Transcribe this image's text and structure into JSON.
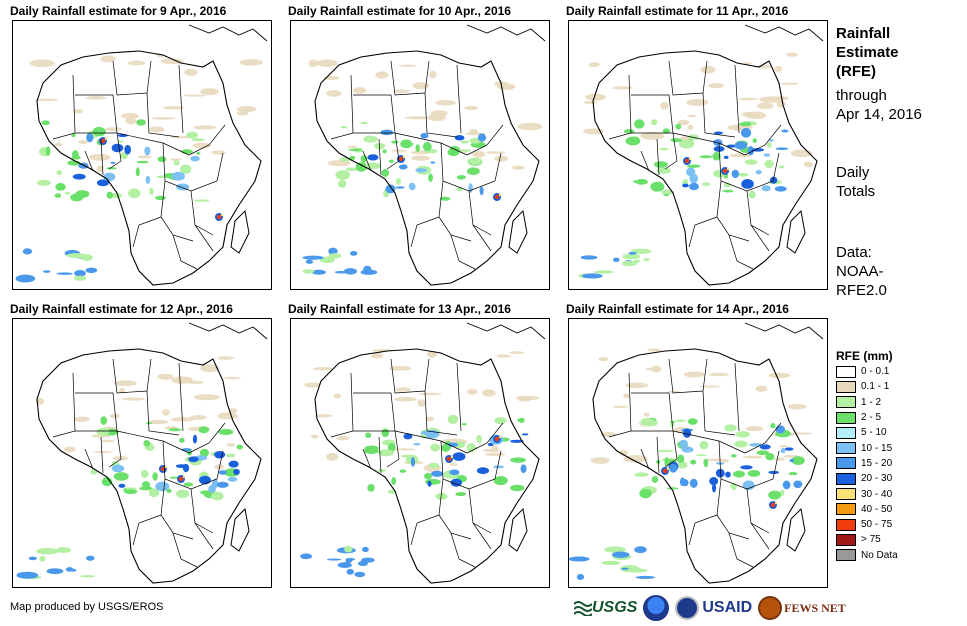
{
  "panels": [
    {
      "title": "Daily Rainfall estimate for 9 Apr., 2016",
      "day": "9 Apr., 2016"
    },
    {
      "title": "Daily Rainfall estimate for 10 Apr., 2016",
      "day": "10 Apr., 2016"
    },
    {
      "title": "Daily Rainfall estimate for 11 Apr., 2016",
      "day": "11 Apr., 2016"
    },
    {
      "title": "Daily Rainfall estimate for 12 Apr., 2016",
      "day": "12 Apr., 2016"
    },
    {
      "title": "Daily Rainfall estimate for 13 Apr., 2016",
      "day": "13 Apr., 2016"
    },
    {
      "title": "Daily Rainfall estimate for 14 Apr., 2016",
      "day": "14 Apr., 2016"
    }
  ],
  "side": {
    "title_line1": "Rainfall",
    "title_line2": "Estimate",
    "title_line3": "(RFE)",
    "through_line1": "through",
    "through_line2": "Apr 14, 2016",
    "daily_line1": "Daily",
    "daily_line2": "Totals",
    "data_line1": "Data:",
    "data_line2": "NOAA-",
    "data_line3": "RFE2.0"
  },
  "legend": {
    "title": "RFE (mm)",
    "items": [
      {
        "label": "0 - 0.1",
        "color": "#ffffff"
      },
      {
        "label": "0.1 - 1",
        "color": "#e8d9bc"
      },
      {
        "label": "1 - 2",
        "color": "#b4f0a4"
      },
      {
        "label": "2 - 5",
        "color": "#6ae06a"
      },
      {
        "label": "5 - 10",
        "color": "#b4eef8"
      },
      {
        "label": "10 - 15",
        "color": "#7cc0f4"
      },
      {
        "label": "15 - 20",
        "color": "#4a98ec"
      },
      {
        "label": "20 - 30",
        "color": "#1a60dc"
      },
      {
        "label": "30 - 40",
        "color": "#fce078"
      },
      {
        "label": "40 - 50",
        "color": "#f49a10"
      },
      {
        "label": "50 - 75",
        "color": "#f03c0c"
      },
      {
        "label": "> 75",
        "color": "#a01818"
      },
      {
        "label": "No Data",
        "color": "#999999"
      }
    ]
  },
  "footer": {
    "credit": "Map produced by USGS/EROS",
    "logos": {
      "usgs": "USGS",
      "noaa": "NOAA",
      "usaid": "USAID",
      "fews": "FEWS NET"
    }
  }
}
